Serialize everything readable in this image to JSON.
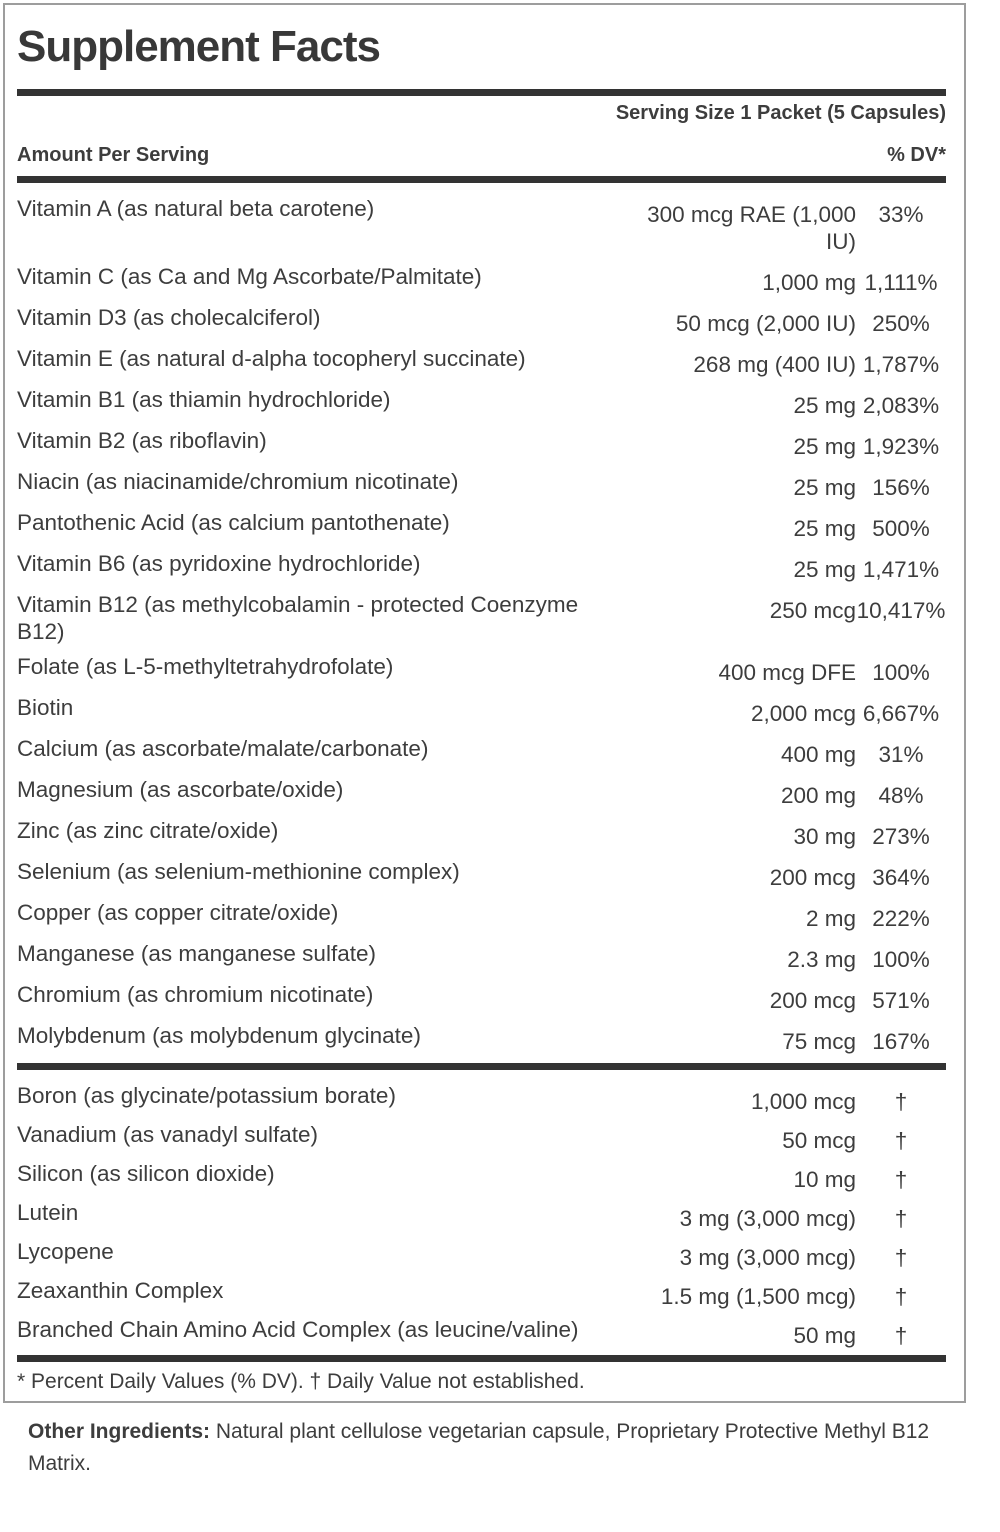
{
  "colors": {
    "text": "#3d3d3d",
    "rule_bar": "#333333",
    "panel_border": "#9d9d9d",
    "background": "#ffffff"
  },
  "panel": {
    "title": "Supplement Facts",
    "serving_size": "Serving Size 1 Packet (5 Capsules)",
    "amount_header": "Amount Per Serving",
    "dv_header": "% DV*",
    "rows_main": [
      {
        "name": "Vitamin A (as natural beta carotene)",
        "amount": "300 mcg RAE (1,000 IU)",
        "dv": "33%"
      },
      {
        "name": "Vitamin C (as Ca and Mg Ascorbate/Palmitate)",
        "amount": "1,000 mg",
        "dv": "1,111%"
      },
      {
        "name": "Vitamin D3 (as cholecalciferol)",
        "amount": "50 mcg (2,000 IU)",
        "dv": "250%"
      },
      {
        "name": "Vitamin E (as natural d-alpha tocopheryl succinate)",
        "amount": "268 mg (400 IU)",
        "dv": "1,787%"
      },
      {
        "name": "Vitamin B1 (as thiamin hydrochloride)",
        "amount": "25 mg",
        "dv": "2,083%"
      },
      {
        "name": "Vitamin B2 (as riboflavin)",
        "amount": "25 mg",
        "dv": "1,923%"
      },
      {
        "name": "Niacin (as niacinamide/chromium nicotinate)",
        "amount": "25 mg",
        "dv": "156%"
      },
      {
        "name": "Pantothenic Acid (as calcium pantothenate)",
        "amount": "25 mg",
        "dv": "500%"
      },
      {
        "name": "Vitamin B6 (as pyridoxine hydrochloride)",
        "amount": "25 mg",
        "dv": "1,471%"
      },
      {
        "name": "Vitamin B12 (as methylcobalamin - protected Coenzyme B12)",
        "amount": "250 mcg",
        "dv": "10,417%"
      },
      {
        "name": "Folate (as L-5-methyltetrahydrofolate)",
        "amount": "400 mcg DFE",
        "dv": "100%"
      },
      {
        "name": "Biotin",
        "amount": "2,000 mcg",
        "dv": "6,667%"
      },
      {
        "name": "Calcium (as ascorbate/malate/carbonate)",
        "amount": "400 mg",
        "dv": "31%"
      },
      {
        "name": "Magnesium (as ascorbate/oxide)",
        "amount": "200 mg",
        "dv": "48%"
      },
      {
        "name": "Zinc (as zinc citrate/oxide)",
        "amount": "30 mg",
        "dv": "273%"
      },
      {
        "name": "Selenium (as selenium-methionine complex)",
        "amount": "200 mcg",
        "dv": "364%"
      },
      {
        "name": "Copper (as copper citrate/oxide)",
        "amount": "2 mg",
        "dv": "222%"
      },
      {
        "name": "Manganese (as manganese sulfate)",
        "amount": "2.3 mg",
        "dv": "100%"
      },
      {
        "name": "Chromium (as chromium nicotinate)",
        "amount": "200 mcg",
        "dv": "571%"
      },
      {
        "name": "Molybdenum (as molybdenum glycinate)",
        "amount": "75 mcg",
        "dv": "167%"
      }
    ],
    "rows_secondary": [
      {
        "name": "Boron (as glycinate/potassium borate)",
        "amount": "1,000 mcg",
        "dv": "†"
      },
      {
        "name": "Vanadium (as vanadyl sulfate)",
        "amount": "50 mcg",
        "dv": "†"
      },
      {
        "name": "Silicon (as silicon dioxide)",
        "amount": "10 mg",
        "dv": "†"
      },
      {
        "name": "Lutein",
        "amount": "3 mg (3,000 mcg)",
        "dv": "†"
      },
      {
        "name": "Lycopene",
        "amount": "3 mg (3,000 mcg)",
        "dv": "†"
      },
      {
        "name": "Zeaxanthin Complex",
        "amount": "1.5 mg (1,500 mcg)",
        "dv": "†"
      },
      {
        "name": "Branched Chain Amino Acid Complex (as leucine/valine)",
        "amount": "50 mg",
        "dv": "†"
      }
    ],
    "footnote": "* Percent Daily Values (% DV). † Daily Value not established."
  },
  "other_ingredients": {
    "label": "Other Ingredients:",
    "text": " Natural plant cellulose vegetarian capsule, Proprietary Protective Methyl B12 Matrix."
  }
}
